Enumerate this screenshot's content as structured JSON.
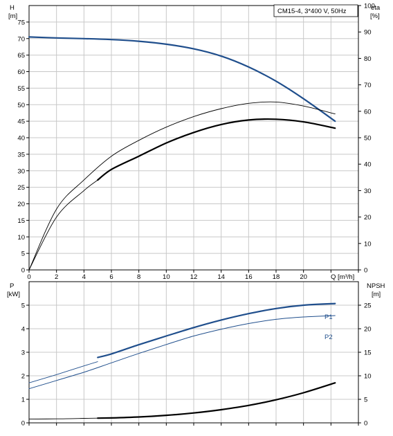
{
  "chart_data": [
    {
      "type": "line",
      "legend_box": "CM15-4, 3*400 V, 50Hz",
      "left_axis": {
        "label": "H",
        "unit": "[m]",
        "range": [
          0,
          80
        ],
        "ticks": [
          0,
          5,
          10,
          15,
          20,
          25,
          30,
          35,
          40,
          45,
          50,
          55,
          60,
          65,
          70,
          75
        ]
      },
      "right_axis": {
        "label": "eta",
        "unit": "[%]",
        "range": [
          0,
          100
        ],
        "ticks": [
          0,
          10,
          20,
          30,
          40,
          50,
          60,
          70,
          80,
          90,
          100
        ]
      },
      "x_axis": {
        "label": "Q [m³/h]",
        "range": [
          0,
          24
        ],
        "ticks": [
          0,
          2,
          4,
          6,
          8,
          10,
          12,
          14,
          16,
          18,
          20
        ]
      },
      "grid": true,
      "series": [
        {
          "axis": "left",
          "color": "#1f4e8c",
          "width": 2.2,
          "points": [
            [
              0,
              70.5
            ],
            [
              2,
              70.2
            ],
            [
              4,
              70.0
            ],
            [
              6,
              69.7
            ],
            [
              8,
              69.2
            ],
            [
              10,
              68.3
            ],
            [
              12,
              66.9
            ],
            [
              14,
              64.7
            ],
            [
              16,
              61.4
            ],
            [
              18,
              57.1
            ],
            [
              20,
              51.8
            ],
            [
              22.3,
              45.0
            ]
          ]
        },
        {
          "axis": "right",
          "color": "#000000",
          "width": 0.9,
          "points": [
            [
              0,
              0
            ],
            [
              2,
              23
            ],
            [
              4,
              34
            ],
            [
              6,
              43
            ],
            [
              8,
              49
            ],
            [
              10,
              54
            ],
            [
              12,
              58
            ],
            [
              14,
              61
            ],
            [
              16,
              63
            ],
            [
              18,
              63.5
            ],
            [
              20,
              62
            ],
            [
              22.3,
              59
            ]
          ]
        },
        {
          "axis": "right",
          "color": "#000000",
          "width": 2.2,
          "points": [
            [
              5,
              34
            ],
            [
              6,
              38
            ],
            [
              8,
              43
            ],
            [
              10,
              48
            ],
            [
              12,
              52
            ],
            [
              14,
              55
            ],
            [
              16,
              56.7
            ],
            [
              18,
              57
            ],
            [
              20,
              56
            ],
            [
              22.3,
              53.6
            ]
          ]
        },
        {
          "axis": "right",
          "color": "#000000",
          "width": 0.9,
          "points": [
            [
              0,
              0
            ],
            [
              2,
              20
            ],
            [
              4,
              30
            ],
            [
              5,
              34
            ]
          ]
        }
      ]
    },
    {
      "type": "line",
      "left_axis": {
        "label": "P",
        "unit": "[kW]",
        "range": [
          0,
          6
        ],
        "ticks": [
          0,
          1,
          2,
          3,
          4,
          5
        ]
      },
      "right_axis": {
        "label": "NPSH",
        "unit": "[m]",
        "range": [
          0,
          30
        ],
        "ticks": [
          0,
          5,
          10,
          15,
          20,
          25
        ]
      },
      "x_axis": {
        "range": [
          0,
          24
        ],
        "ticks": []
      },
      "grid": true,
      "series": [
        {
          "name": "P1",
          "axis": "left",
          "color": "#1f4e8c",
          "width": 0.9,
          "points": [
            [
              0,
              1.7
            ],
            [
              2,
              2.05
            ],
            [
              4,
              2.42
            ],
            [
              5,
              2.6
            ]
          ]
        },
        {
          "name": "P1",
          "axis": "left",
          "color": "#1f4e8c",
          "width": 2.2,
          "points": [
            [
              5,
              2.78
            ],
            [
              6,
              2.93
            ],
            [
              8,
              3.32
            ],
            [
              10,
              3.69
            ],
            [
              12,
              4.05
            ],
            [
              14,
              4.37
            ],
            [
              16,
              4.64
            ],
            [
              18,
              4.86
            ],
            [
              20,
              5.0
            ],
            [
              22.3,
              5.07
            ]
          ]
        },
        {
          "name": "P2",
          "axis": "left",
          "color": "#1f4e8c",
          "width": 1.0,
          "points": [
            [
              0,
              1.45
            ],
            [
              2,
              1.8
            ],
            [
              4,
              2.15
            ],
            [
              6,
              2.55
            ],
            [
              8,
              2.95
            ],
            [
              10,
              3.33
            ],
            [
              12,
              3.69
            ],
            [
              14,
              3.98
            ],
            [
              16,
              4.22
            ],
            [
              18,
              4.4
            ],
            [
              20,
              4.5
            ],
            [
              22.3,
              4.56
            ]
          ]
        },
        {
          "axis": "right",
          "color": "#000000",
          "width": 0.9,
          "points": [
            [
              0,
              0.8
            ],
            [
              2,
              0.85
            ],
            [
              4,
              0.95
            ],
            [
              5,
              1.0
            ]
          ]
        },
        {
          "axis": "right",
          "color": "#000000",
          "width": 2.2,
          "points": [
            [
              5,
              1.0
            ],
            [
              6,
              1.05
            ],
            [
              8,
              1.25
            ],
            [
              10,
              1.6
            ],
            [
              12,
              2.1
            ],
            [
              14,
              2.8
            ],
            [
              16,
              3.7
            ],
            [
              18,
              4.9
            ],
            [
              20,
              6.4
            ],
            [
              22.3,
              8.5
            ]
          ]
        }
      ]
    }
  ]
}
